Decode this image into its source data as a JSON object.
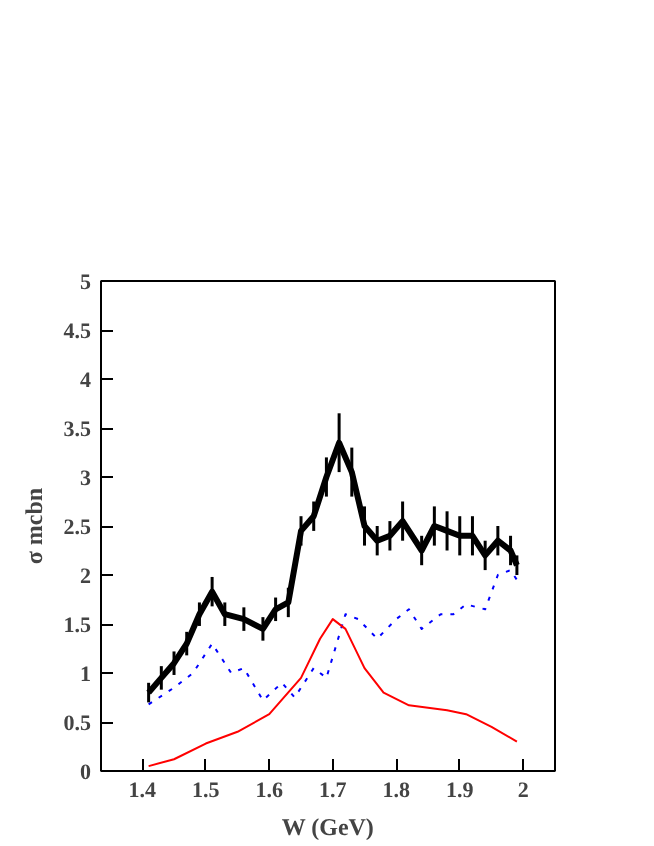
{
  "chart_data": {
    "type": "line",
    "xlabel": "W (GeV)",
    "ylabel": "σ mcbn",
    "xlim": [
      1.335,
      2.05
    ],
    "ylim": [
      0,
      5
    ],
    "xticks": [
      1.4,
      1.5,
      1.6,
      1.7,
      1.8,
      1.9,
      2
    ],
    "yticks": [
      0,
      0.5,
      1,
      1.5,
      2,
      2.5,
      3,
      3.5,
      4,
      4.5,
      5
    ],
    "grid": false,
    "series": [
      {
        "color": "#000000",
        "line_style": "solid",
        "x": [
          1.41,
          1.43,
          1.45,
          1.47,
          1.49,
          1.51,
          1.53,
          1.56,
          1.59,
          1.61,
          1.63,
          1.65,
          1.67,
          1.69,
          1.71,
          1.73,
          1.75,
          1.77,
          1.79,
          1.81,
          1.84,
          1.86,
          1.88,
          1.9,
          1.92,
          1.94,
          1.96,
          1.98,
          1.99
        ],
        "values": [
          0.8,
          0.95,
          1.1,
          1.3,
          1.6,
          1.83,
          1.6,
          1.55,
          1.45,
          1.65,
          1.72,
          2.45,
          2.6,
          3.0,
          3.35,
          3.05,
          2.5,
          2.35,
          2.4,
          2.55,
          2.25,
          2.5,
          2.45,
          2.4,
          2.4,
          2.2,
          2.35,
          2.25,
          2.1
        ],
        "errors": [
          0.1,
          0.12,
          0.12,
          0.12,
          0.12,
          0.15,
          0.12,
          0.12,
          0.12,
          0.12,
          0.15,
          0.15,
          0.15,
          0.2,
          0.3,
          0.25,
          0.2,
          0.15,
          0.15,
          0.2,
          0.15,
          0.2,
          0.2,
          0.2,
          0.2,
          0.15,
          0.15,
          0.15,
          0.1
        ]
      },
      {
        "color": "#0000ff",
        "line_style": "dotted",
        "x": [
          1.41,
          1.45,
          1.48,
          1.51,
          1.54,
          1.56,
          1.59,
          1.62,
          1.64,
          1.67,
          1.69,
          1.72,
          1.74,
          1.77,
          1.8,
          1.82,
          1.84,
          1.87,
          1.89,
          1.91,
          1.94,
          1.96,
          1.98,
          1.99
        ],
        "values": [
          0.68,
          0.85,
          1.0,
          1.3,
          1.0,
          1.05,
          0.72,
          0.9,
          0.75,
          1.05,
          0.95,
          1.6,
          1.55,
          1.35,
          1.55,
          1.65,
          1.45,
          1.6,
          1.6,
          1.7,
          1.65,
          2.0,
          2.05,
          1.95
        ]
      },
      {
        "color": "#ff0000",
        "line_style": "solid",
        "x": [
          1.41,
          1.45,
          1.5,
          1.55,
          1.6,
          1.65,
          1.68,
          1.7,
          1.72,
          1.75,
          1.78,
          1.82,
          1.88,
          1.91,
          1.95,
          1.99
        ],
        "values": [
          0.05,
          0.12,
          0.28,
          0.4,
          0.58,
          0.95,
          1.35,
          1.55,
          1.45,
          1.05,
          0.8,
          0.67,
          0.62,
          0.58,
          0.45,
          0.3
        ]
      }
    ]
  }
}
